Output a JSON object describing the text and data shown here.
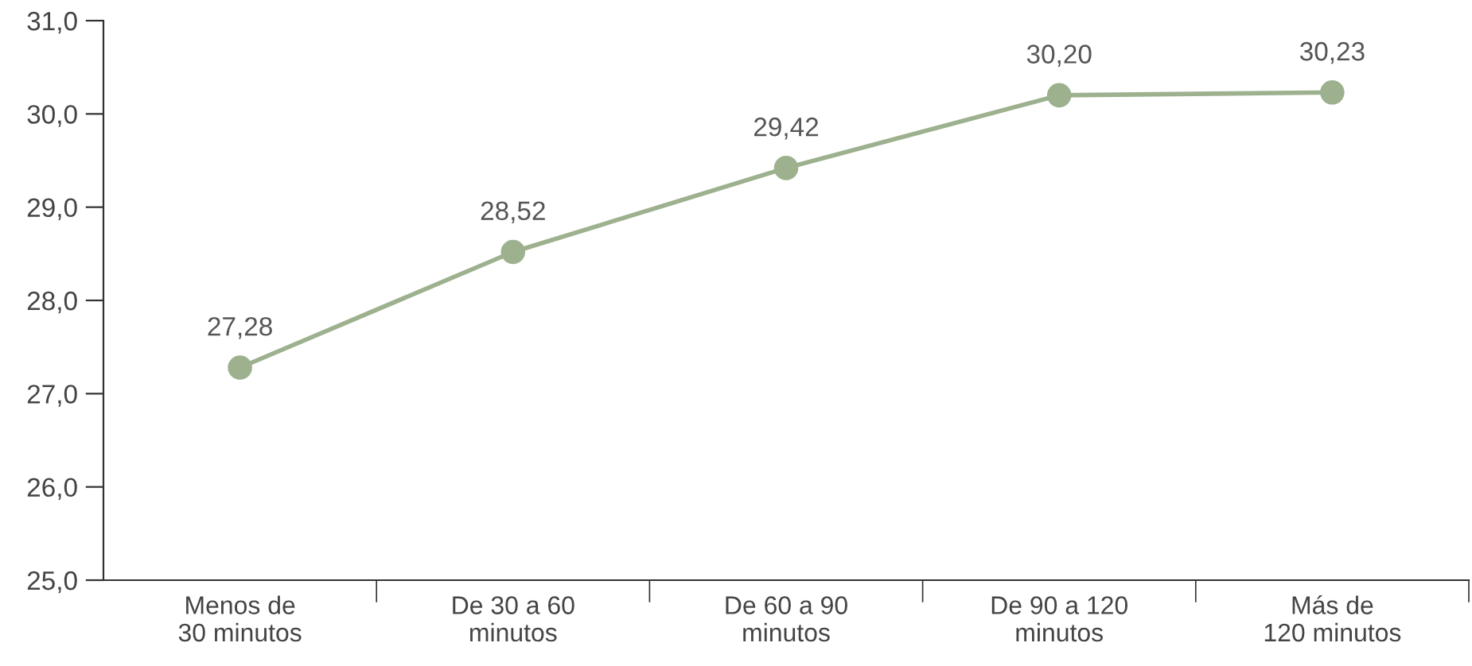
{
  "chart_data": {
    "type": "line",
    "categories": [
      "Menos de\n30 minutos",
      "De 30 a 60\nminutos",
      "De 60 a 90\nminutos",
      "De 90 a 120\nminutos",
      "Más de\n120 minutos"
    ],
    "series": [
      {
        "color": "#9db18f",
        "values": [
          27.28,
          28.52,
          29.42,
          30.2,
          30.23
        ],
        "value_labels": [
          "27,28",
          "28,52",
          "29,42",
          "30,20",
          "30,23"
        ]
      }
    ],
    "ylim": [
      25,
      31
    ],
    "yticks": [
      {
        "value": 25,
        "label": "25,0"
      },
      {
        "value": 26,
        "label": "26,0"
      },
      {
        "value": 27,
        "label": "27,0"
      },
      {
        "value": 28,
        "label": "28,0"
      },
      {
        "value": 29,
        "label": "29,0"
      },
      {
        "value": 30,
        "label": "30,0"
      },
      {
        "value": 31,
        "label": "31,0"
      }
    ],
    "marker": "circle",
    "line_style": "solid",
    "grid": false,
    "legend": false
  }
}
